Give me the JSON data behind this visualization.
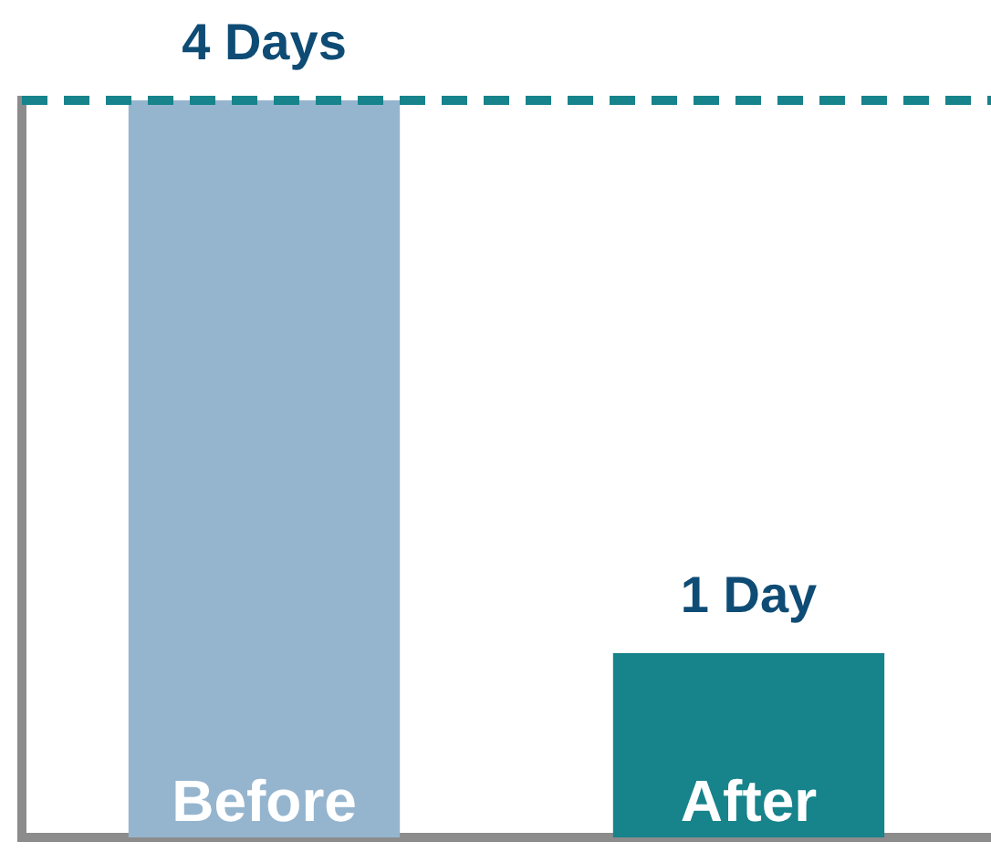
{
  "chart_data": {
    "type": "bar",
    "categories": [
      "Before",
      "After"
    ],
    "values": [
      4,
      1
    ],
    "colors": [
      "#95b5cf",
      "#17838b"
    ],
    "value_labels": [
      "4 Days",
      "1 Day"
    ],
    "ref_lines": [
      {
        "axis": "y",
        "value": 4,
        "color": "#17838b",
        "line_style": "dashed"
      }
    ],
    "grid": false,
    "legend": false
  }
}
